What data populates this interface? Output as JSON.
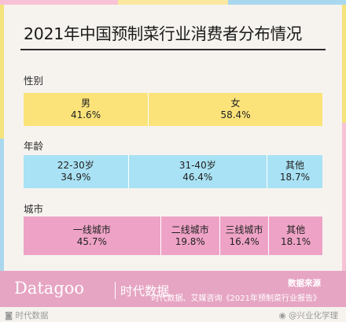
{
  "title": "2021年中国预制菜行业消费者分布情况",
  "colors": {
    "gender": "#fbe37a",
    "age": "#a9e2f4",
    "city": "#eea3c6",
    "footer": "#e6a5c3",
    "top_bar": [
      "#f7c2d6",
      "#fce7a0",
      "#a9d8ee",
      "#f5e37c"
    ]
  },
  "chart_data": {
    "type": "table",
    "title": "2021年中国预制菜行业消费者分布情况",
    "sections": [
      {
        "label": "性别",
        "cells": [
          {
            "name": "男",
            "value": "41.6%",
            "share": 41.6
          },
          {
            "name": "女",
            "value": "58.4%",
            "share": 58.4
          }
        ]
      },
      {
        "label": "年龄",
        "cells": [
          {
            "name": "22-30岁",
            "value": "34.9%",
            "share": 34.9
          },
          {
            "name": "31-40岁",
            "value": "46.4%",
            "share": 46.4
          },
          {
            "name": "其他",
            "value": "18.7%",
            "share": 18.7
          }
        ]
      },
      {
        "label": "城市",
        "cells": [
          {
            "name": "一线城市",
            "value": "45.7%",
            "share": 45.7
          },
          {
            "name": "二线城市",
            "value": "19.8%",
            "share": 19.8
          },
          {
            "name": "三线城市",
            "value": "16.4%",
            "share": 16.4
          },
          {
            "name": "其他",
            "value": "18.1%",
            "share": 18.1
          }
        ]
      }
    ]
  },
  "footer": {
    "brand": "Datagoo",
    "brand_cn": "时代数据",
    "source_title": "数据来源",
    "source_text": "时代数据、艾媒咨询《2021年预制菜行业报告》",
    "watermark_left": "时代数据",
    "watermark_right": "@兴业化学理"
  }
}
